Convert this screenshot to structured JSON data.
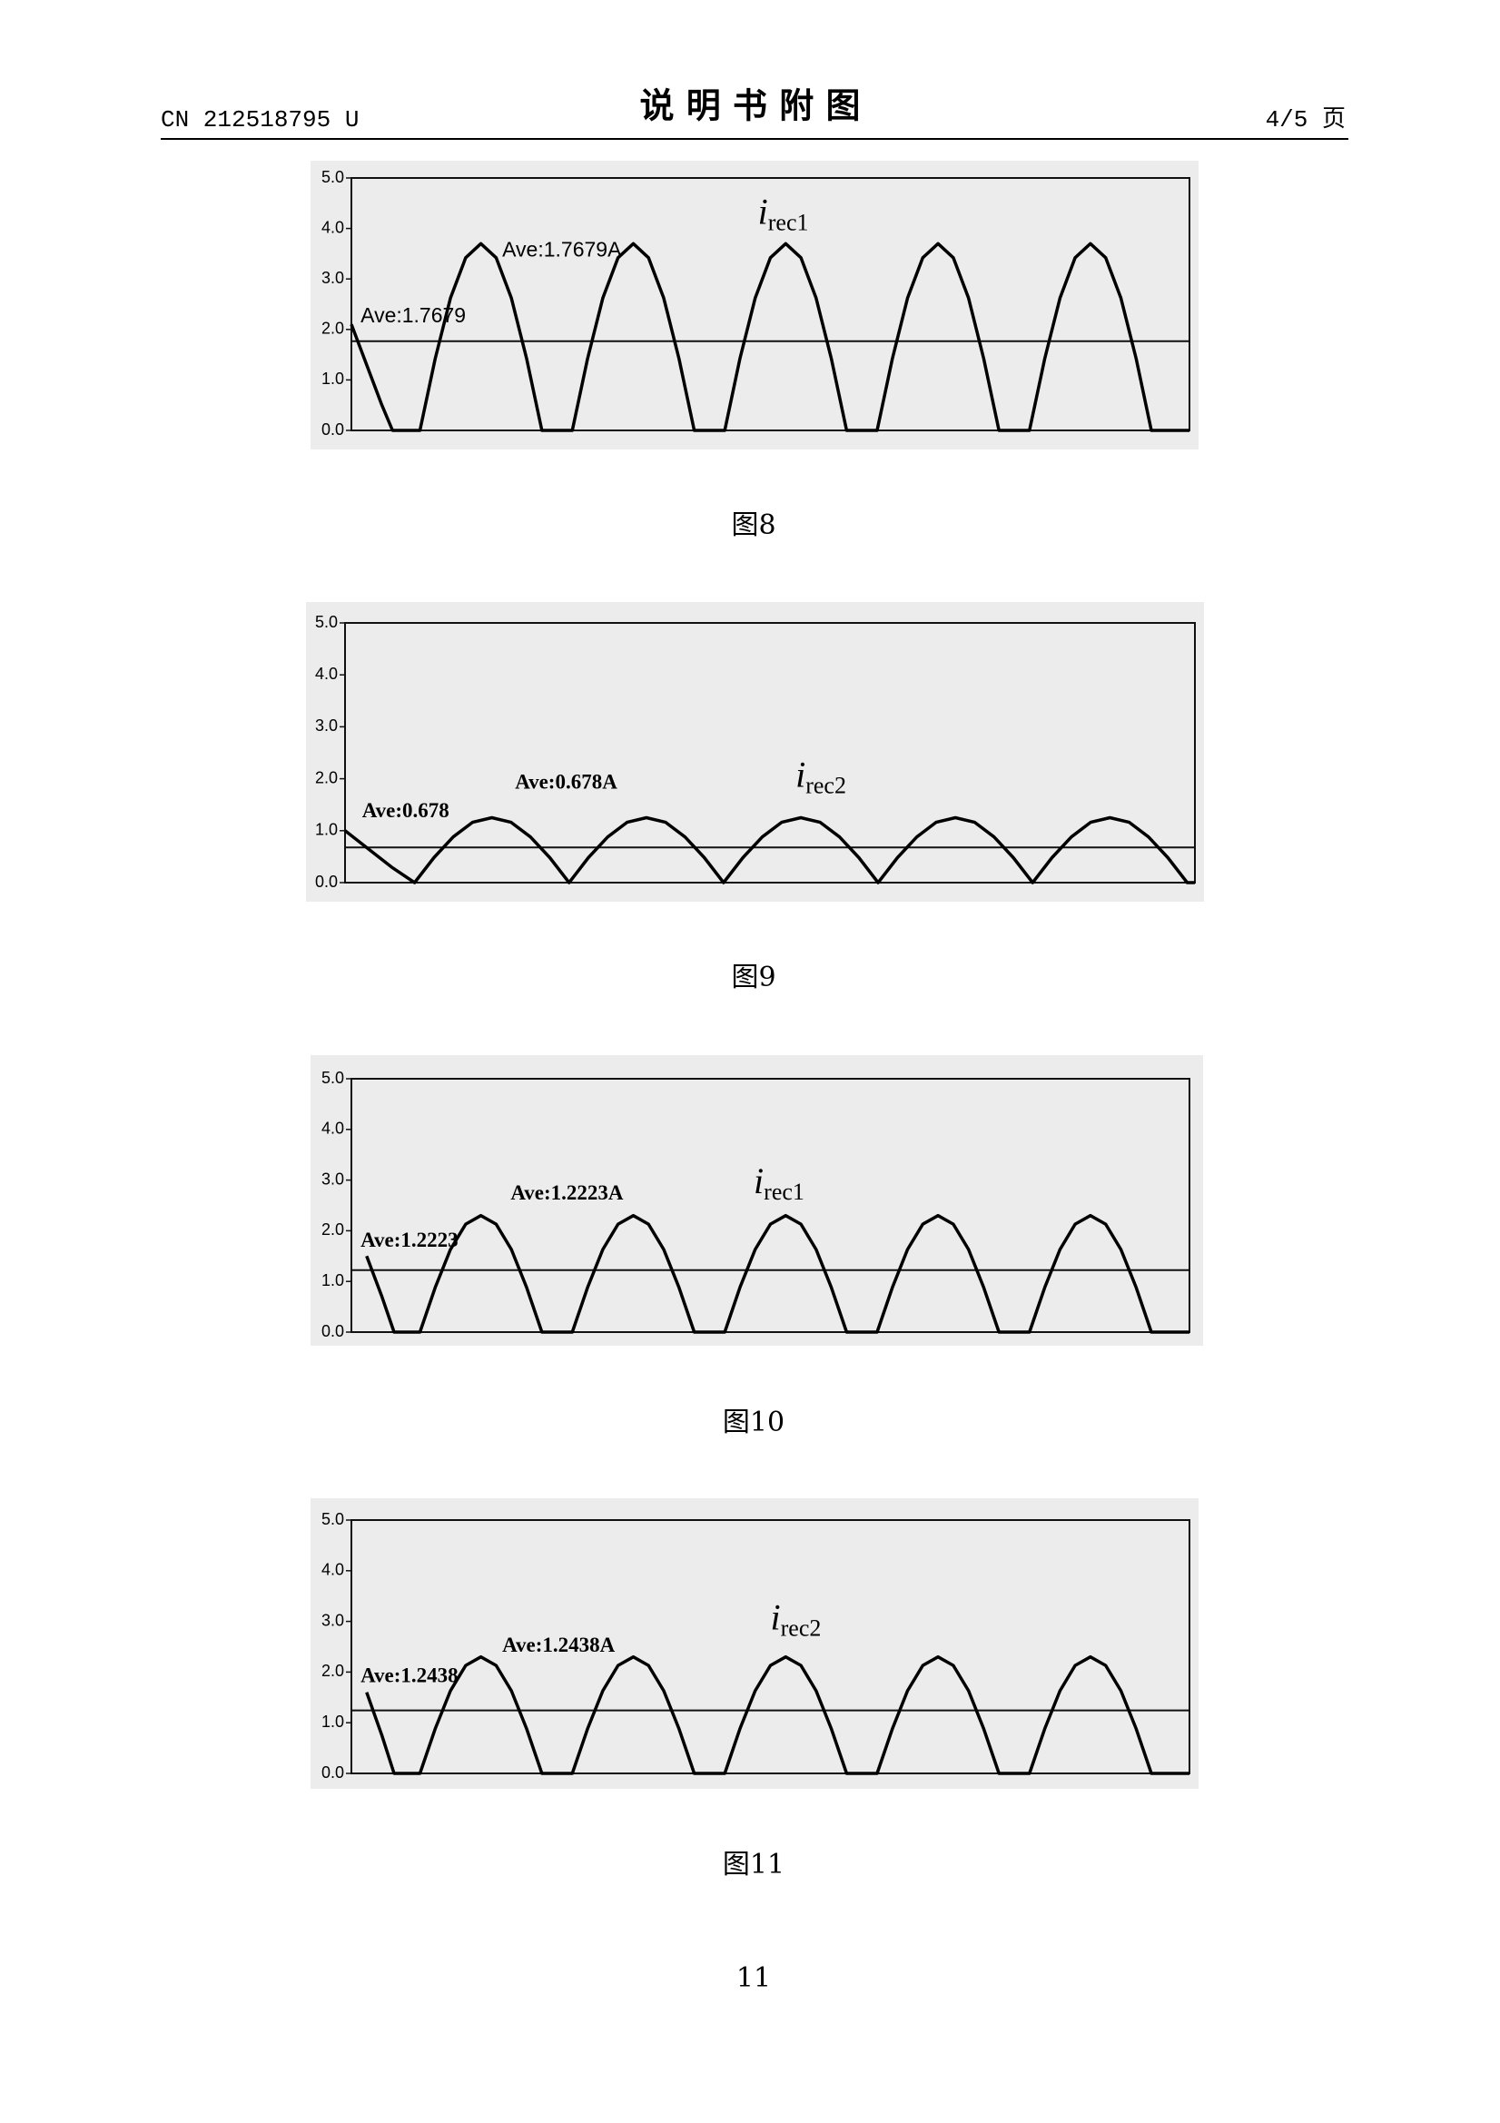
{
  "header": {
    "code": "CN 212518795 U",
    "title": "说 明 书 附 图",
    "page": "4/5 页"
  },
  "page_number": "11",
  "chart_data": [
    {
      "type": "line",
      "caption": "图8",
      "average": 1.7679,
      "annotations": [
        "Ave:1.7679",
        "Ave:1.7679A"
      ],
      "xlim": [
        0,
        5.5
      ],
      "ylim": [
        0,
        5
      ],
      "yticks": [
        {
          "value": 0,
          "label": "0.0"
        },
        {
          "value": 1,
          "label": "1.0"
        },
        {
          "value": 2,
          "label": "2.0"
        },
        {
          "value": 3,
          "label": "3.0"
        },
        {
          "value": 4,
          "label": "4.0"
        },
        {
          "value": 5,
          "label": "5.0"
        }
      ],
      "series": [
        {
          "name": "i",
          "subscript": "rec1",
          "color": "#000000",
          "x": [
            0,
            0.1,
            0.2,
            0.27,
            0.45,
            0.55,
            0.65,
            0.75,
            0.85,
            0.95,
            1.05,
            1.15,
            1.25,
            1.45,
            1.55,
            1.65,
            1.75,
            1.85,
            1.95,
            2.05,
            2.15,
            2.25,
            2.45,
            2.55,
            2.65,
            2.75,
            2.85,
            2.95,
            3.05,
            3.15,
            3.25,
            3.45,
            3.55,
            3.65,
            3.75,
            3.85,
            3.95,
            4.05,
            4.15,
            4.25,
            4.45,
            4.55,
            4.65,
            4.75,
            4.85,
            4.95,
            5.05,
            5.15,
            5.25,
            5.5
          ],
          "values": [
            2.1,
            1.3,
            0.5,
            0,
            0,
            1.42,
            2.62,
            3.42,
            3.7,
            3.42,
            2.62,
            1.42,
            0,
            0,
            1.42,
            2.62,
            3.42,
            3.7,
            3.42,
            2.62,
            1.42,
            0,
            0,
            1.42,
            2.62,
            3.42,
            3.7,
            3.42,
            2.62,
            1.42,
            0,
            0,
            1.42,
            2.62,
            3.42,
            3.7,
            3.42,
            2.62,
            1.42,
            0,
            0,
            1.42,
            2.62,
            3.42,
            3.7,
            3.42,
            2.62,
            1.42,
            0,
            0
          ]
        }
      ]
    },
    {
      "type": "line",
      "caption": "图9",
      "average": 0.678,
      "annotations": [
        "Ave:0.678",
        "Ave:0.678A"
      ],
      "xlim": [
        0,
        5.5
      ],
      "ylim": [
        0,
        5
      ],
      "yticks": [
        {
          "value": 0,
          "label": "0.0"
        },
        {
          "value": 1,
          "label": "1.0"
        },
        {
          "value": 2,
          "label": "2.0"
        },
        {
          "value": 3,
          "label": "3.0"
        },
        {
          "value": 4,
          "label": "4.0"
        },
        {
          "value": 5,
          "label": "5.0"
        }
      ],
      "series": [
        {
          "name": "i",
          "subscript": "rec2",
          "color": "#000000",
          "x": [
            0,
            0.15,
            0.3,
            0.45,
            0.575,
            0.7,
            0.825,
            0.95,
            1.075,
            1.2,
            1.325,
            1.45,
            1.575,
            1.7,
            1.825,
            1.95,
            2.075,
            2.2,
            2.325,
            2.45,
            2.575,
            2.7,
            2.825,
            2.95,
            3.075,
            3.2,
            3.325,
            3.45,
            3.575,
            3.7,
            3.825,
            3.95,
            4.075,
            4.2,
            4.325,
            4.45,
            4.575,
            4.7,
            4.825,
            4.95,
            5.075,
            5.2,
            5.325,
            5.45,
            5.5
          ],
          "values": [
            1.0,
            0.65,
            0.3,
            0,
            0.48,
            0.88,
            1.16,
            1.25,
            1.16,
            0.88,
            0.48,
            0,
            0.48,
            0.88,
            1.16,
            1.25,
            1.16,
            0.88,
            0.48,
            0,
            0.48,
            0.88,
            1.16,
            1.25,
            1.16,
            0.88,
            0.48,
            0,
            0.48,
            0.88,
            1.16,
            1.25,
            1.16,
            0.88,
            0.48,
            0,
            0.48,
            0.88,
            1.16,
            1.25,
            1.16,
            0.88,
            0.48,
            0,
            0
          ]
        }
      ]
    },
    {
      "type": "line",
      "caption": "图10",
      "average": 1.2223,
      "annotations": [
        "Ave:1.2223",
        "Ave:1.2223A"
      ],
      "xlim": [
        0,
        5.5
      ],
      "ylim": [
        0,
        5
      ],
      "yticks": [
        {
          "value": 0,
          "label": "0.0"
        },
        {
          "value": 1,
          "label": "1.0"
        },
        {
          "value": 2,
          "label": "2.0"
        },
        {
          "value": 3,
          "label": "3.0"
        },
        {
          "value": 4,
          "label": "4.0"
        },
        {
          "value": 5,
          "label": "5.0"
        }
      ],
      "series": [
        {
          "name": "i",
          "subscript": "rec1",
          "color": "#000000",
          "x": [
            0.1,
            0.2,
            0.28,
            0.45,
            0.55,
            0.65,
            0.75,
            0.85,
            0.95,
            1.05,
            1.15,
            1.25,
            1.45,
            1.55,
            1.65,
            1.75,
            1.85,
            1.95,
            2.05,
            2.15,
            2.25,
            2.45,
            2.55,
            2.65,
            2.75,
            2.85,
            2.95,
            3.05,
            3.15,
            3.25,
            3.45,
            3.55,
            3.65,
            3.75,
            3.85,
            3.95,
            4.05,
            4.15,
            4.25,
            4.45,
            4.55,
            4.65,
            4.75,
            4.85,
            4.95,
            5.05,
            5.15,
            5.25,
            5.5
          ],
          "values": [
            1.5,
            0.7,
            0,
            0,
            0.88,
            1.63,
            2.13,
            2.3,
            2.13,
            1.63,
            0.88,
            0,
            0,
            0.88,
            1.63,
            2.13,
            2.3,
            2.13,
            1.63,
            0.88,
            0,
            0,
            0.88,
            1.63,
            2.13,
            2.3,
            2.13,
            1.63,
            0.88,
            0,
            0,
            0.88,
            1.63,
            2.13,
            2.3,
            2.13,
            1.63,
            0.88,
            0,
            0,
            0.88,
            1.63,
            2.13,
            2.3,
            2.13,
            1.63,
            0.88,
            0,
            0
          ]
        }
      ]
    },
    {
      "type": "line",
      "caption": "图11",
      "average": 1.2438,
      "annotations": [
        "Ave:1.2438",
        "Ave:1.2438A"
      ],
      "xlim": [
        0,
        5.5
      ],
      "ylim": [
        0,
        5
      ],
      "yticks": [
        {
          "value": 0,
          "label": "0.0"
        },
        {
          "value": 1,
          "label": "1.0"
        },
        {
          "value": 2,
          "label": "2.0"
        },
        {
          "value": 3,
          "label": "3.0"
        },
        {
          "value": 4,
          "label": "4.0"
        },
        {
          "value": 5,
          "label": "5.0"
        }
      ],
      "series": [
        {
          "name": "i",
          "subscript": "rec2",
          "color": "#000000",
          "x": [
            0.1,
            0.2,
            0.28,
            0.45,
            0.55,
            0.65,
            0.75,
            0.85,
            0.95,
            1.05,
            1.15,
            1.25,
            1.45,
            1.55,
            1.65,
            1.75,
            1.85,
            1.95,
            2.05,
            2.15,
            2.25,
            2.45,
            2.55,
            2.65,
            2.75,
            2.85,
            2.95,
            3.05,
            3.15,
            3.25,
            3.45,
            3.55,
            3.65,
            3.75,
            3.85,
            3.95,
            4.05,
            4.15,
            4.25,
            4.45,
            4.55,
            4.65,
            4.75,
            4.85,
            4.95,
            5.05,
            5.15,
            5.25,
            5.5
          ],
          "values": [
            1.6,
            0.75,
            0,
            0,
            0.88,
            1.63,
            2.13,
            2.3,
            2.13,
            1.63,
            0.88,
            0,
            0,
            0.88,
            1.63,
            2.13,
            2.3,
            2.13,
            1.63,
            0.88,
            0,
            0,
            0.88,
            1.63,
            2.13,
            2.3,
            2.13,
            1.63,
            0.88,
            0,
            0,
            0.88,
            1.63,
            2.13,
            2.3,
            2.13,
            1.63,
            0.88,
            0,
            0,
            0.88,
            1.63,
            2.13,
            2.3,
            2.13,
            1.63,
            0.88,
            0,
            0
          ]
        }
      ]
    }
  ]
}
